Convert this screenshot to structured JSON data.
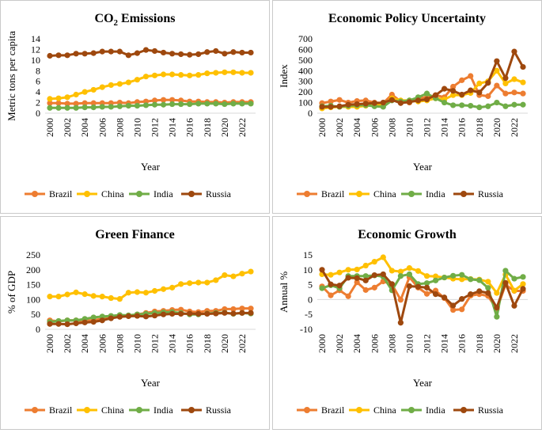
{
  "series_names": [
    "Brazil",
    "China",
    "India",
    "Russia"
  ],
  "colors": {
    "Brazil": "#ed7d31",
    "China": "#ffc000",
    "India": "#70ad47",
    "Russia": "#9e480e"
  },
  "chart_data": [
    {
      "type": "line",
      "title": "CO",
      "title_sub": "2",
      "title_rest": " Emissions",
      "xlabel": "Year",
      "ylabel": "Metric tons per capita",
      "ylim": [
        0,
        14
      ],
      "yticks": [
        0,
        2,
        4,
        6,
        8,
        10,
        12,
        14
      ],
      "x": [
        2000,
        2001,
        2002,
        2003,
        2004,
        2005,
        2006,
        2007,
        2008,
        2009,
        2010,
        2011,
        2012,
        2013,
        2014,
        2015,
        2016,
        2017,
        2018,
        2019,
        2020,
        2021,
        2022,
        2023
      ],
      "xticks": [
        "2000",
        "2002",
        "2004",
        "2006",
        "2008",
        "2010",
        "2012",
        "2014",
        "2016",
        "2018",
        "2020",
        "2022"
      ],
      "legend": [
        "Brazil",
        "China",
        "India",
        "Russia"
      ],
      "series": [
        {
          "name": "Brazil",
          "values": [
            1.9,
            1.9,
            1.8,
            1.8,
            1.9,
            1.9,
            1.9,
            1.9,
            2.0,
            1.9,
            2.1,
            2.2,
            2.4,
            2.5,
            2.5,
            2.4,
            2.2,
            2.2,
            2.1,
            2.1,
            2.0,
            2.1,
            2.1,
            2.1
          ]
        },
        {
          "name": "China",
          "values": [
            2.7,
            2.8,
            3.0,
            3.5,
            4.0,
            4.4,
            4.9,
            5.3,
            5.5,
            5.8,
            6.3,
            6.9,
            7.1,
            7.3,
            7.3,
            7.2,
            7.1,
            7.2,
            7.5,
            7.6,
            7.7,
            7.7,
            7.6,
            7.6
          ]
        },
        {
          "name": "India",
          "values": [
            1.0,
            1.0,
            1.0,
            1.0,
            1.1,
            1.1,
            1.2,
            1.2,
            1.3,
            1.4,
            1.4,
            1.5,
            1.6,
            1.6,
            1.7,
            1.7,
            1.7,
            1.8,
            1.8,
            1.8,
            1.7,
            1.8,
            1.8,
            1.8
          ]
        },
        {
          "name": "Russia",
          "values": [
            10.8,
            10.9,
            10.9,
            11.2,
            11.2,
            11.3,
            11.6,
            11.6,
            11.6,
            10.9,
            11.3,
            11.9,
            11.7,
            11.4,
            11.2,
            11.1,
            11.0,
            11.1,
            11.5,
            11.7,
            11.2,
            11.5,
            11.4,
            11.4
          ]
        }
      ]
    },
    {
      "type": "line",
      "title": "Economic Policy Uncertainty",
      "xlabel": "Year",
      "ylabel": "Index",
      "ylim": [
        0,
        700
      ],
      "yticks": [
        0,
        100,
        200,
        300,
        400,
        500,
        600,
        700
      ],
      "x": [
        2000,
        2001,
        2002,
        2003,
        2004,
        2005,
        2006,
        2007,
        2008,
        2009,
        2010,
        2011,
        2012,
        2013,
        2014,
        2015,
        2016,
        2017,
        2018,
        2019,
        2020,
        2021,
        2022,
        2023
      ],
      "xticks": [
        "2000",
        "2002",
        "2004",
        "2006",
        "2008",
        "2010",
        "2012",
        "2014",
        "2016",
        "2018",
        "2020",
        "2022"
      ],
      "legend": [
        "Brazil",
        "China",
        "India",
        "Russia"
      ],
      "series": [
        {
          "name": "Brazil",
          "values": [
            95,
            110,
            125,
            100,
            115,
            120,
            100,
            95,
            175,
            110,
            100,
            140,
            150,
            170,
            150,
            250,
            310,
            350,
            170,
            160,
            260,
            185,
            195,
            185
          ]
        },
        {
          "name": "China",
          "values": [
            45,
            55,
            60,
            60,
            60,
            70,
            80,
            80,
            140,
            120,
            120,
            110,
            120,
            140,
            130,
            170,
            170,
            190,
            280,
            300,
            400,
            280,
            320,
            290
          ]
        },
        {
          "name": "India",
          "values": [
            65,
            70,
            60,
            70,
            75,
            75,
            65,
            60,
            120,
            110,
            120,
            150,
            185,
            140,
            100,
            75,
            75,
            70,
            55,
            65,
            100,
            65,
            80,
            80
          ]
        },
        {
          "name": "Russia",
          "values": [
            60,
            60,
            65,
            80,
            85,
            90,
            95,
            100,
            125,
            95,
            105,
            120,
            130,
            170,
            230,
            210,
            175,
            215,
            195,
            285,
            490,
            330,
            580,
            435
          ]
        }
      ]
    },
    {
      "type": "line",
      "title": "Green Finance",
      "xlabel": "Year",
      "ylabel": "% of GDP",
      "ylim": [
        0,
        250
      ],
      "yticks": [
        0,
        50,
        100,
        150,
        200,
        250
      ],
      "x": [
        2000,
        2001,
        2002,
        2003,
        2004,
        2005,
        2006,
        2007,
        2008,
        2009,
        2010,
        2011,
        2012,
        2013,
        2014,
        2015,
        2016,
        2017,
        2018,
        2019,
        2020,
        2021,
        2022,
        2023
      ],
      "xticks": [
        "2000",
        "2002",
        "2004",
        "2006",
        "2008",
        "2010",
        "2012",
        "2014",
        "2016",
        "2018",
        "2020",
        "2022"
      ],
      "legend": [
        "Brazil",
        "China",
        "India",
        "Russia"
      ],
      "series": [
        {
          "name": "Brazil",
          "values": [
            30,
            27,
            30,
            30,
            28,
            31,
            35,
            40,
            42,
            45,
            50,
            55,
            60,
            62,
            65,
            66,
            60,
            58,
            62,
            62,
            68,
            68,
            70,
            70
          ]
        },
        {
          "name": "China",
          "values": [
            110,
            110,
            117,
            124,
            118,
            112,
            110,
            105,
            102,
            123,
            125,
            123,
            129,
            135,
            140,
            152,
            155,
            157,
            157,
            165,
            182,
            178,
            187,
            194
          ]
        },
        {
          "name": "India",
          "values": [
            25,
            28,
            30,
            30,
            35,
            40,
            43,
            45,
            48,
            47,
            50,
            52,
            55,
            57,
            58,
            55,
            50,
            50,
            53,
            55,
            56,
            52,
            55,
            53
          ]
        },
        {
          "name": "Russia",
          "values": [
            18,
            18,
            17,
            20,
            23,
            25,
            30,
            37,
            42,
            44,
            45,
            43,
            46,
            50,
            52,
            52,
            53,
            52,
            52,
            53,
            55,
            53,
            55,
            55
          ]
        }
      ]
    },
    {
      "type": "line",
      "title": "Economic Growth",
      "xlabel": "Year",
      "ylabel": "Annual %",
      "ylim": [
        -10,
        15
      ],
      "yticks": [
        -10,
        -5,
        0,
        5,
        10,
        15
      ],
      "x": [
        2000,
        2001,
        2002,
        2003,
        2004,
        2005,
        2006,
        2007,
        2008,
        2009,
        2010,
        2011,
        2012,
        2013,
        2014,
        2015,
        2016,
        2017,
        2018,
        2019,
        2020,
        2021,
        2022,
        2023
      ],
      "xticks": [
        "2000",
        "2002",
        "2004",
        "2006",
        "2008",
        "2010",
        "2012",
        "2014",
        "2016",
        "2018",
        "2020",
        "2022"
      ],
      "legend": [
        "Brazil",
        "China",
        "India",
        "Russia"
      ],
      "series": [
        {
          "name": "Brazil",
          "values": [
            4.4,
            1.4,
            3.1,
            1.1,
            5.8,
            3.2,
            4.0,
            6.1,
            5.1,
            -0.1,
            7.5,
            4.0,
            1.9,
            3.0,
            0.5,
            -3.5,
            -3.3,
            1.3,
            1.8,
            1.2,
            -3.3,
            5.0,
            2.9,
            2.9
          ]
        },
        {
          "name": "China",
          "values": [
            8.5,
            8.3,
            9.1,
            10.0,
            10.1,
            11.4,
            12.7,
            14.2,
            9.7,
            9.4,
            10.6,
            9.6,
            7.9,
            7.8,
            7.4,
            7.0,
            6.8,
            6.9,
            6.7,
            6.0,
            2.2,
            8.4,
            3.0,
            5.2
          ]
        },
        {
          "name": "India",
          "values": [
            3.8,
            4.8,
            3.8,
            7.9,
            7.9,
            7.9,
            8.1,
            7.7,
            3.1,
            7.9,
            8.5,
            5.2,
            5.5,
            6.4,
            7.4,
            8.0,
            8.3,
            6.8,
            6.5,
            3.9,
            -5.8,
            9.7,
            7.0,
            7.6
          ]
        },
        {
          "name": "Russia",
          "values": [
            10.0,
            5.1,
            4.7,
            7.3,
            7.2,
            6.4,
            8.2,
            8.5,
            5.2,
            -7.8,
            4.5,
            4.3,
            4.0,
            1.8,
            0.7,
            -2.0,
            0.2,
            1.8,
            2.8,
            2.2,
            -2.7,
            5.6,
            -2.1,
            3.6
          ]
        }
      ]
    }
  ]
}
